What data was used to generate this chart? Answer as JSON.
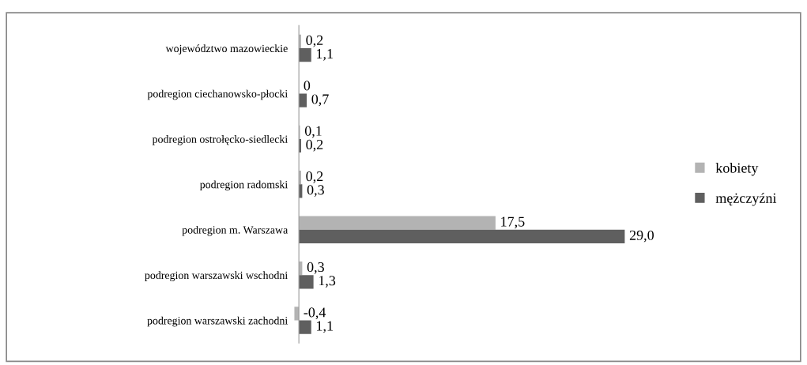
{
  "chart_data": {
    "type": "bar",
    "orientation": "horizontal",
    "legend": "right",
    "categories": [
      "województwo mazowieckie",
      "podregion ciechanowsko-płocki",
      "podregion ostrołęcko-siedlecki",
      "podregion radomski",
      "podregion m. Warszawa",
      "podregion warszawski wschodni",
      "podregion warszawski zachodni"
    ],
    "series": [
      {
        "name": "kobiety",
        "color": "#b3b3b3",
        "values": [
          0.2,
          0,
          0.1,
          0.2,
          17.5,
          0.3,
          -0.4
        ],
        "value_labels": [
          "0,2",
          "0",
          "0,1",
          "0,2",
          "17,5",
          "0,3",
          "-0,4"
        ]
      },
      {
        "name": "mężczyźni",
        "color": "#5f5f5f",
        "values": [
          1.1,
          0.7,
          0.2,
          0.3,
          29.0,
          1.3,
          1.1
        ],
        "value_labels": [
          "1,1",
          "0,7",
          "0,2",
          "0,3",
          "29,0",
          "1,3",
          "1,1"
        ]
      }
    ]
  }
}
